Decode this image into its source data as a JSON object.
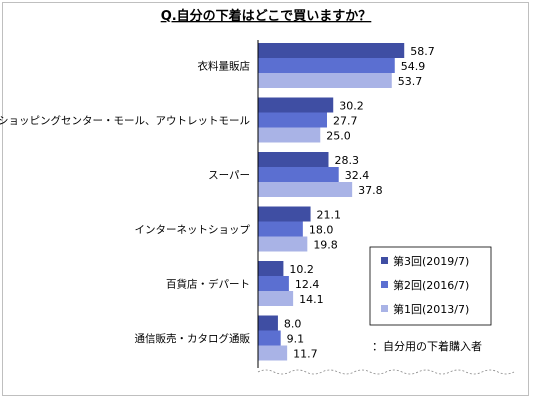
{
  "chart_data": {
    "type": "bar",
    "orientation": "horizontal",
    "title": "Q.自分の下着はどこで買いますか？",
    "categories": [
      "衣料量販店",
      "ショッピングセンター・モール、アウトレットモール",
      "スーパー",
      "インターネットショップ",
      "百貨店・デパート",
      "通信販売・カタログ通販"
    ],
    "series": [
      {
        "name": "第3回(2019/7)",
        "color": "#3f4ea3",
        "values": [
          58.7,
          30.2,
          28.3,
          21.1,
          10.2,
          8.0
        ]
      },
      {
        "name": "第2回(2016/7)",
        "color": "#5b6fd1",
        "values": [
          54.9,
          27.7,
          32.4,
          18.0,
          12.4,
          9.1
        ]
      },
      {
        "name": "第1回(2013/7)",
        "color": "#a9b3e6",
        "values": [
          53.7,
          25.0,
          37.8,
          19.8,
          14.1,
          11.7
        ]
      }
    ],
    "value_labels": [
      [
        "58.7",
        "54.9",
        "53.7"
      ],
      [
        "30.2",
        "27.7",
        "25.0"
      ],
      [
        "28.3",
        "32.4",
        "37.8"
      ],
      [
        "21.1",
        "18.0",
        "19.8"
      ],
      [
        "10.2",
        "12.4",
        "14.1"
      ],
      [
        "8.0",
        "9.1",
        "11.7"
      ]
    ],
    "xlim": [
      0,
      100
    ],
    "grid": false,
    "legend_position": "bottom-right",
    "note": "：自分用の下着購入者"
  }
}
